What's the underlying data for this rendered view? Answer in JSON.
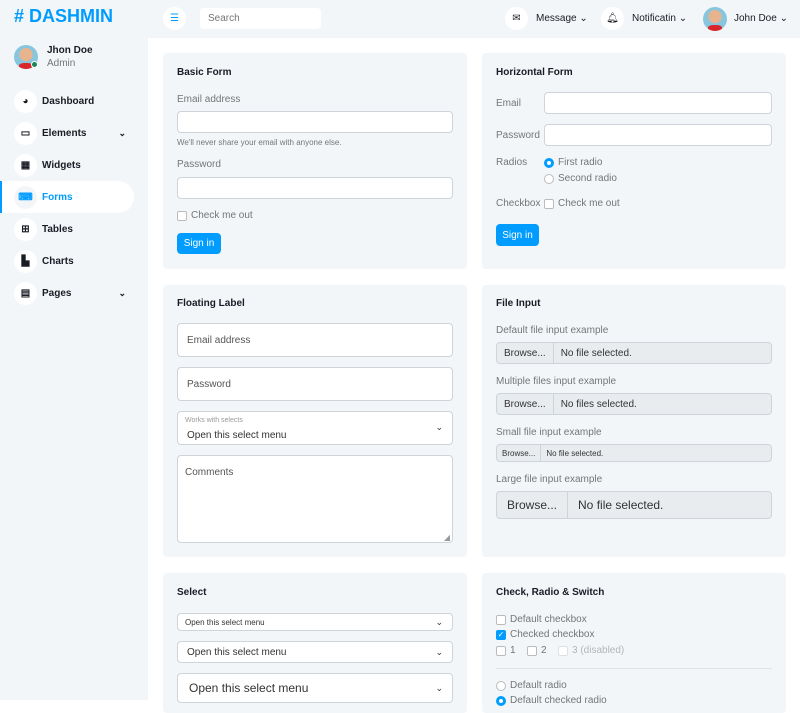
{
  "brand": "# DASHMIN",
  "user": {
    "name": "Jhon Doe",
    "role": "Admin"
  },
  "sidebar": {
    "items": [
      {
        "label": "Dashboard",
        "icon": "gauge-icon",
        "glyph": "◕"
      },
      {
        "label": "Elements",
        "icon": "laptop-icon",
        "glyph": "▭",
        "chevron": true
      },
      {
        "label": "Widgets",
        "icon": "grid-icon",
        "glyph": "▦"
      },
      {
        "label": "Forms",
        "icon": "keyboard-icon",
        "glyph": "⌨",
        "active": true
      },
      {
        "label": "Tables",
        "icon": "table-icon",
        "glyph": "⊞"
      },
      {
        "label": "Charts",
        "icon": "chart-icon",
        "glyph": "▙"
      },
      {
        "label": "Pages",
        "icon": "file-icon",
        "glyph": "▤",
        "chevron": true
      }
    ]
  },
  "topbar": {
    "search_placeholder": "Search",
    "message": "Message",
    "notification": "Notificatin",
    "profile": "John Doe"
  },
  "basic_form": {
    "title": "Basic Form",
    "email_label": "Email address",
    "help": "We'll never share your email with anyone else.",
    "password_label": "Password",
    "check": "Check me out",
    "submit": "Sign in"
  },
  "horizontal_form": {
    "title": "Horizontal Form",
    "email_label": "Email",
    "password_label": "Password",
    "radios_label": "Radios",
    "radio1": "First radio",
    "radio2": "Second radio",
    "checkbox_label": "Checkbox",
    "check": "Check me out",
    "submit": "Sign in"
  },
  "floating": {
    "title": "Floating Label",
    "email": "Email address",
    "password": "Password",
    "select_label": "Works with selects",
    "select_value": "Open this select menu",
    "comments": "Comments"
  },
  "file_input": {
    "title": "File Input",
    "default_label": "Default file input example",
    "multiple_label": "Multiple files input example",
    "small_label": "Small file input example",
    "large_label": "Large file input example",
    "browse": "Browse...",
    "none": "No file selected.",
    "none_multi": "No files selected."
  },
  "select": {
    "title": "Select",
    "value": "Open this select menu"
  },
  "check": {
    "title": "Check, Radio & Switch",
    "default_cb": "Default checkbox",
    "checked_cb": "Checked checkbox",
    "inline": [
      "1",
      "2",
      "3 (disabled)"
    ],
    "default_radio": "Default radio",
    "checked_radio": "Default checked radio"
  },
  "colors": {
    "primary": "#009cff",
    "background": "#f3f6f9"
  }
}
